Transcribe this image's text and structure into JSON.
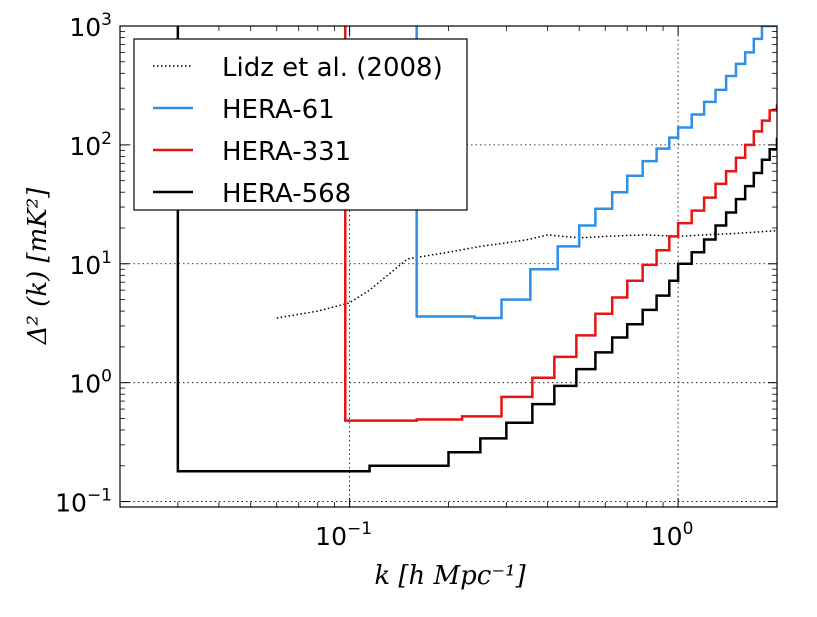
{
  "chart_data": {
    "type": "line",
    "xscale": "log",
    "yscale": "log",
    "xlim": [
      0.02,
      2.0
    ],
    "ylim": [
      0.09,
      1000
    ],
    "grid": true,
    "legend_position": "top-left",
    "xlabel": "k [h Mpc⁻¹]",
    "ylabel": "Δ² (k) [mK²]",
    "x_ticks": [
      {
        "value": 0.1,
        "base": "10",
        "exp": "−1"
      },
      {
        "value": 1.0,
        "base": "10",
        "exp": "0"
      }
    ],
    "y_ticks": [
      {
        "value": 0.1,
        "base": "10",
        "exp": "−1"
      },
      {
        "value": 1,
        "base": "10",
        "exp": "0"
      },
      {
        "value": 10,
        "base": "10",
        "exp": "1"
      },
      {
        "value": 100,
        "base": "10",
        "exp": "2"
      },
      {
        "value": 1000,
        "base": "10",
        "exp": "3"
      }
    ],
    "series": [
      {
        "name": "Lidz et al. (2008)",
        "color": "#000000",
        "style": "dotted",
        "step": false,
        "x": [
          0.06,
          0.08,
          0.1,
          0.115,
          0.15,
          0.2,
          0.25,
          0.3,
          0.35,
          0.4,
          0.45,
          0.5,
          0.6,
          0.7,
          0.8,
          1.0,
          1.2,
          1.5,
          2.0
        ],
        "y": [
          3.5,
          4.0,
          4.7,
          6.0,
          11.0,
          12.5,
          14.0,
          15.0,
          16.0,
          17.5,
          17.0,
          16.5,
          17.0,
          17.3,
          17.5,
          17.0,
          17.5,
          18.0,
          19.0
        ]
      },
      {
        "name": "HERA-61",
        "color": "#2f8fe8",
        "style": "solid",
        "step": true,
        "x": [
          0.16,
          0.16,
          0.24,
          0.29,
          0.355,
          0.43,
          0.5,
          0.56,
          0.63,
          0.7,
          0.78,
          0.86,
          0.94,
          1.0,
          1.1,
          1.2,
          1.3,
          1.4,
          1.5,
          1.6,
          1.7,
          1.8
        ],
        "y": [
          1000,
          3.6,
          3.5,
          5.0,
          9.0,
          14.0,
          21.0,
          29.0,
          40.0,
          55.0,
          73.0,
          93.0,
          115.0,
          140.0,
          180.0,
          230.0,
          290.0,
          380.0,
          480.0,
          600.0,
          780.0,
          1000.0
        ]
      },
      {
        "name": "HERA-331",
        "color": "#e81414",
        "style": "solid",
        "step": true,
        "x": [
          0.097,
          0.097,
          0.16,
          0.22,
          0.29,
          0.36,
          0.42,
          0.49,
          0.56,
          0.63,
          0.7,
          0.78,
          0.86,
          0.94,
          1.0,
          1.1,
          1.2,
          1.3,
          1.4,
          1.5,
          1.6,
          1.7,
          1.8,
          1.9,
          2.0
        ],
        "y": [
          1000,
          0.48,
          0.49,
          0.52,
          0.76,
          1.1,
          1.65,
          2.5,
          3.8,
          5.2,
          7.2,
          9.8,
          13.0,
          17.0,
          22.0,
          28.0,
          36.0,
          47.0,
          60.0,
          78.0,
          100.0,
          130.0,
          160.0,
          195.0,
          220.0
        ]
      },
      {
        "name": "HERA-568",
        "color": "#000000",
        "style": "solid",
        "step": true,
        "x": [
          0.03,
          0.03,
          0.115,
          0.2,
          0.25,
          0.3,
          0.36,
          0.42,
          0.49,
          0.56,
          0.63,
          0.7,
          0.78,
          0.86,
          0.94,
          1.0,
          1.1,
          1.2,
          1.3,
          1.4,
          1.5,
          1.6,
          1.7,
          1.8,
          1.9,
          2.0
        ],
        "y": [
          1000,
          0.18,
          0.2,
          0.26,
          0.34,
          0.46,
          0.66,
          0.94,
          1.3,
          1.8,
          2.4,
          3.1,
          4.1,
          5.4,
          7.2,
          10.0,
          12.5,
          16.0,
          21.0,
          27.0,
          35.0,
          45.0,
          58.0,
          75.0,
          92.0,
          115.0
        ]
      }
    ]
  }
}
